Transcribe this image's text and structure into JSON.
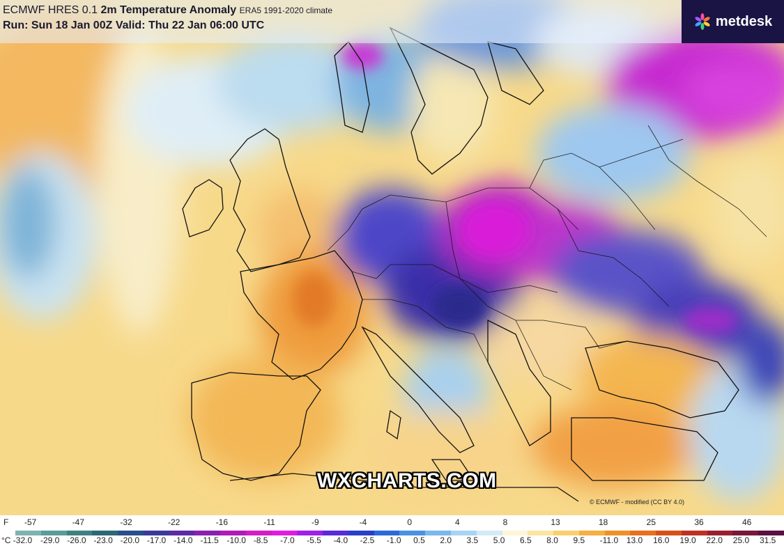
{
  "header": {
    "model": "ECMWF HRES 0.1",
    "parameter": "2m Temperature Anomaly",
    "climate": "ERA5 1991-2020 climate",
    "run_line": "Run: Sun 18 Jan 00Z Valid: Thu 22 Jan 06:00 UTC"
  },
  "logo": {
    "name": "metdesk"
  },
  "watermark": "WXCHARTS.COM",
  "credit": "© ECMWF - modified (CC BY 4.0)",
  "legend": {
    "f_label": "F",
    "f_ticks": [
      "-57",
      "-47",
      "-32",
      "-22",
      "-16",
      "-11",
      "-9",
      "-4",
      "0",
      "4",
      "8",
      "13",
      "18",
      "25",
      "36",
      "46"
    ],
    "c_ticks": [
      "°C -32.0",
      "-29.0",
      "-26.0",
      "-23.0",
      "-20.0",
      "-17.0",
      "-14.0",
      "-11.5",
      "-10.0",
      "-8.5",
      "-7.0",
      "-5.5",
      "-4.0",
      "-2.5",
      "-1.0",
      "0.5",
      "2.0",
      "3.5",
      "5.0",
      "6.5",
      "8.0",
      "9.5",
      "-11.0",
      "13.0",
      "16.0",
      "19.0",
      "22.0",
      "25.0",
      "31.5"
    ],
    "colors": [
      "#7fb3b0",
      "#5a9c9a",
      "#3d8280",
      "#2b6a75",
      "#2a4f8c",
      "#3b3a9b",
      "#5c2ba5",
      "#8a1fb0",
      "#b21ab8",
      "#d41cc4",
      "#e01ce0",
      "#a020e8",
      "#5a2ad8",
      "#2a3ec8",
      "#2b6ad8",
      "#4a92e0",
      "#7ab8ec",
      "#a8d4f4",
      "#d4eaf8",
      "#fdf6d8",
      "#fbe6a0",
      "#f8d070",
      "#f5b040",
      "#f09028",
      "#e87020",
      "#d85018",
      "#c03020",
      "#9a2030",
      "#7a1838",
      "#5a1040"
    ]
  }
}
